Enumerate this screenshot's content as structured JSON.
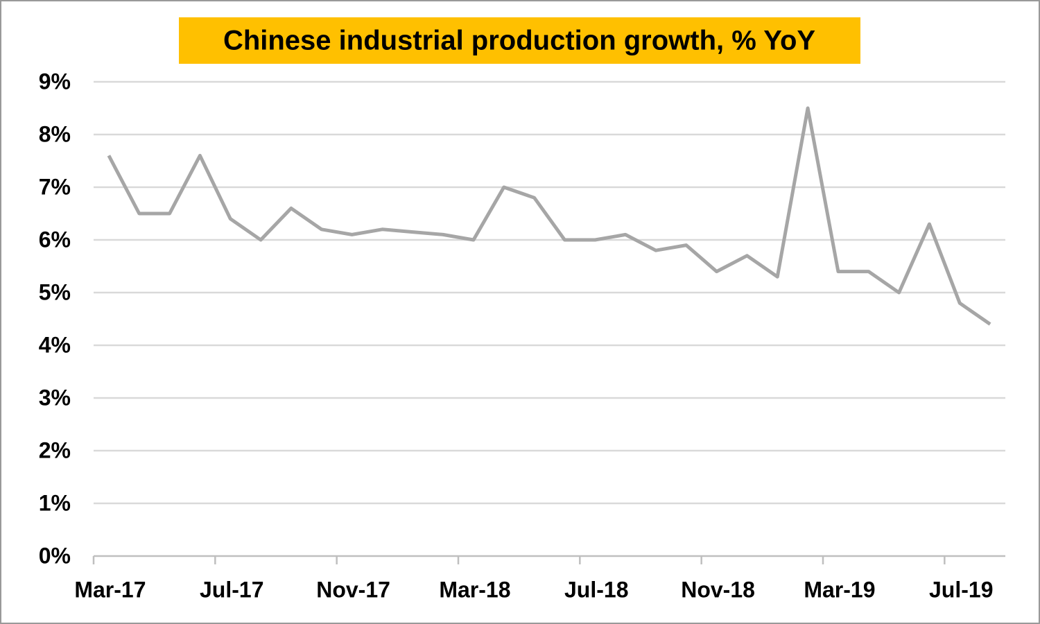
{
  "chart_data": {
    "type": "line",
    "title": "Chinese industrial production growth, % YoY",
    "categories": [
      "Mar-17",
      null,
      null,
      null,
      "Jul-17",
      null,
      null,
      null,
      "Nov-17",
      null,
      null,
      null,
      "Mar-18",
      null,
      null,
      null,
      "Jul-18",
      null,
      null,
      null,
      "Nov-18",
      null,
      null,
      null,
      "Mar-19",
      null,
      null,
      null,
      "Jul-19",
      null
    ],
    "values": [
      7.6,
      6.5,
      6.5,
      7.6,
      6.4,
      6.0,
      6.6,
      6.2,
      6.1,
      6.2,
      6.15,
      6.1,
      6.0,
      7.0,
      6.8,
      6.0,
      6.0,
      6.1,
      5.8,
      5.9,
      5.4,
      5.7,
      5.3,
      8.5,
      5.4,
      5.4,
      5.0,
      6.3,
      4.8,
      4.4
    ],
    "color": "#a6a6a6",
    "ylim": [
      0,
      9
    ],
    "yticks": [
      {
        "value": 0,
        "label": "0%"
      },
      {
        "value": 1,
        "label": "1%"
      },
      {
        "value": 2,
        "label": "2%"
      },
      {
        "value": 3,
        "label": "3%"
      },
      {
        "value": 4,
        "label": "4%"
      },
      {
        "value": 5,
        "label": "5%"
      },
      {
        "value": 6,
        "label": "6%"
      },
      {
        "value": 7,
        "label": "7%"
      },
      {
        "value": 8,
        "label": "8%"
      },
      {
        "value": 9,
        "label": "9%"
      }
    ],
    "grid": true
  }
}
